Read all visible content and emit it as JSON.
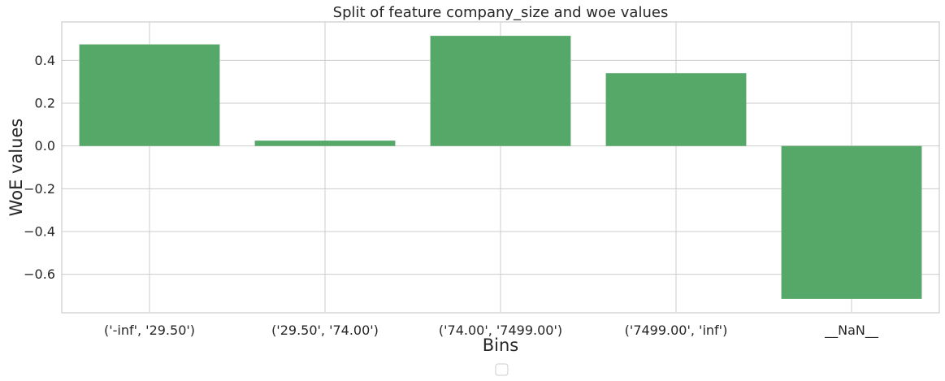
{
  "chart_data": {
    "type": "bar",
    "title": "Split of feature company_size and woe values",
    "xlabel": "Bins",
    "ylabel": "WoE values",
    "categories": [
      "('-inf', '29.50')",
      "('29.50', '74.00')",
      "('74.00', '7499.00')",
      "('7499.00', 'inf')",
      "__NaN__"
    ],
    "values": [
      0.475,
      0.025,
      0.515,
      0.34,
      -0.715
    ],
    "ylim": [
      -0.78,
      0.58
    ],
    "yticks": [
      0.4,
      0.2,
      0.0,
      -0.2,
      -0.4,
      -0.6
    ],
    "ytick_labels": [
      "0.4",
      "0.2",
      "0.0",
      "−0.2",
      "−0.4",
      "−0.6"
    ],
    "grid": true,
    "bar_color": "#55a868",
    "legend": "bottom-center, empty"
  }
}
